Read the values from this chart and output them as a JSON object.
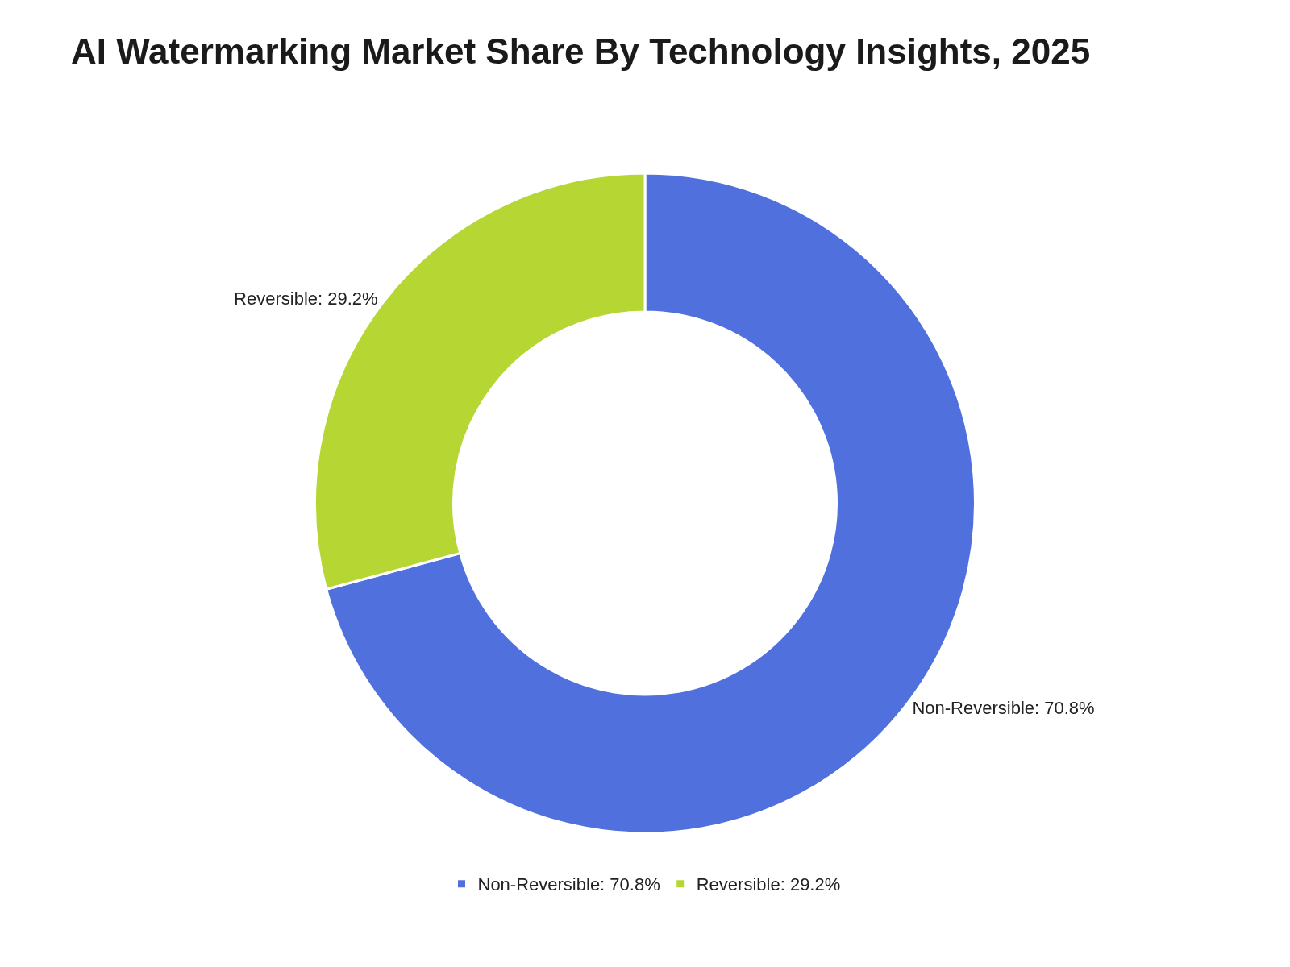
{
  "chart_data": {
    "type": "donut",
    "title": "AI Watermarking Market Share By Technology Insights, 2025",
    "categories": [
      "Non-Reversible",
      "Reversible"
    ],
    "values": [
      70.8,
      29.2
    ],
    "value_labels": [
      "70.8%",
      "29.2%"
    ],
    "colors": [
      "#5070dd",
      "#b6d634"
    ],
    "legend": "bottom"
  }
}
